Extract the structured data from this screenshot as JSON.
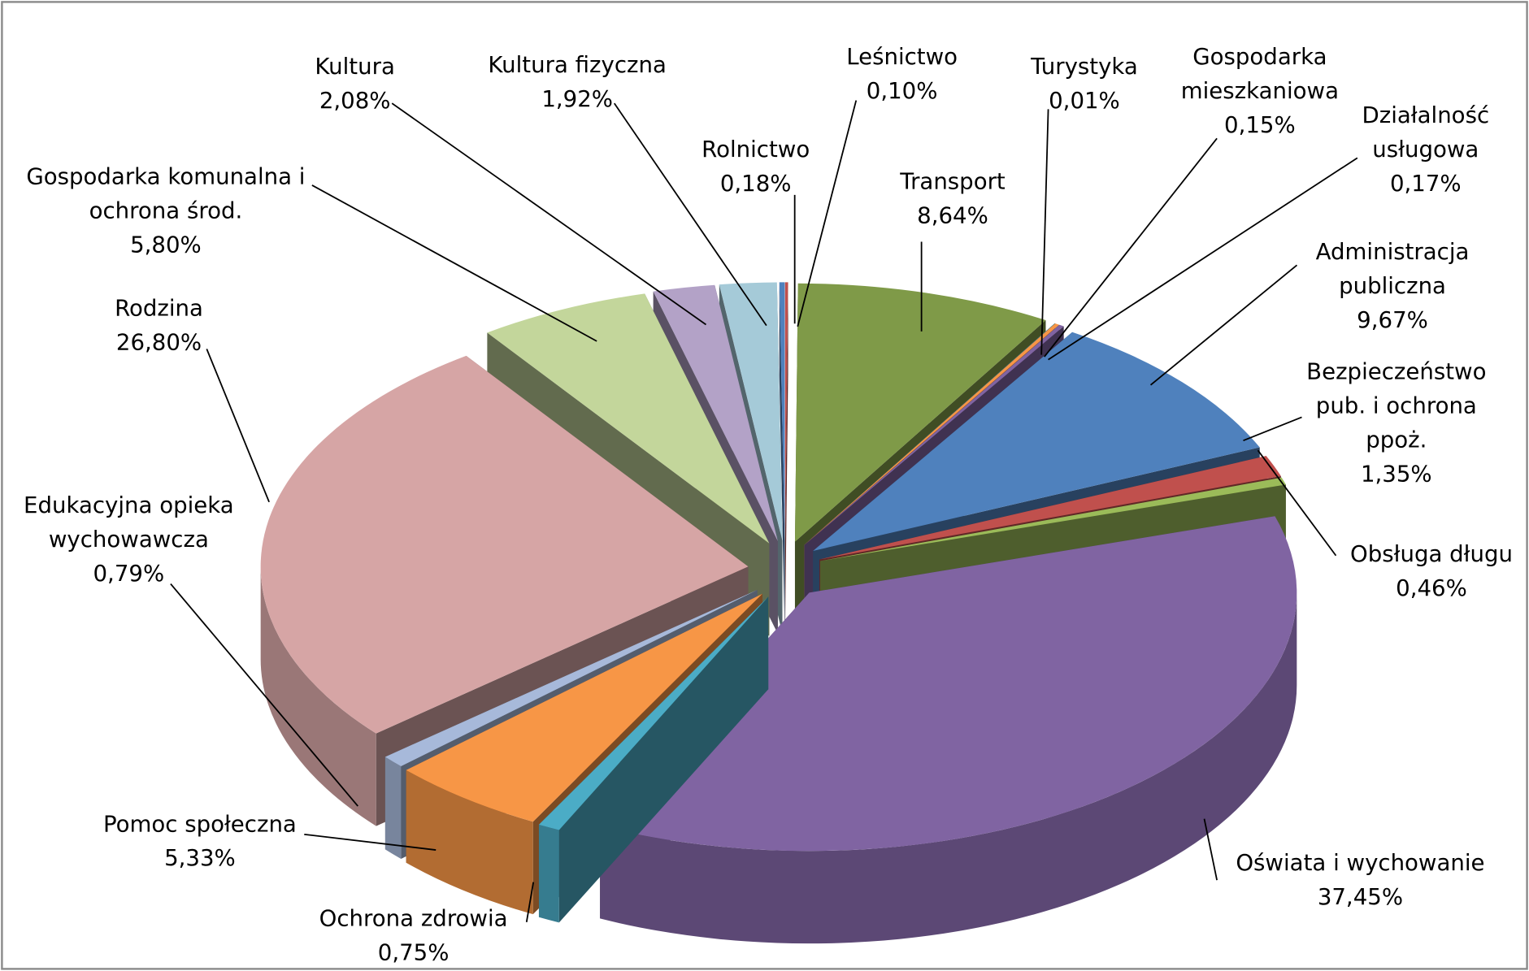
{
  "chart_data": {
    "type": "pie",
    "three_d": true,
    "exploded": true,
    "categories": [
      "Leśnictwo",
      "Transport",
      "Turystyka",
      "Gospodarka mieszkaniowa",
      "Działalność usługowa",
      "Administracja publiczna",
      "Bezpieczeństwo pub. i ochrona ppoż.",
      "Obsługa długu",
      "Oświata i wychowanie",
      "Ochrona zdrowia",
      "Pomoc społeczna",
      "Edukacyjna opieka wychowawcza",
      "Rodzina",
      "Gospodarka komunalna i ochrona środ.",
      "Kultura",
      "Kultura fizyczna",
      "Rolnictwo"
    ],
    "values": [
      0.1,
      8.64,
      0.01,
      0.15,
      0.17,
      9.67,
      1.35,
      0.46,
      37.45,
      0.75,
      5.33,
      0.79,
      26.8,
      5.8,
      2.08,
      1.92,
      0.18
    ],
    "value_labels": [
      "0,10%",
      "8,64%",
      "0,01%",
      "0,15%",
      "0,17%",
      "9,67%",
      "1,35%",
      "0,46%",
      "37,45%",
      "0,75%",
      "5,33%",
      "0,79%",
      "26,80%",
      "5,80%",
      "2,08%",
      "1,92%",
      "0,18%"
    ],
    "colors": [
      "#c0504d",
      "#7f9a48",
      "#4bacc6",
      "#f79646",
      "#8064a2",
      "#4f81bd",
      "#c0504d",
      "#9bbb59",
      "#8064a2",
      "#4bacc6",
      "#f79646",
      "#a7b9da",
      "#d6a5a5",
      "#c3d69b",
      "#b3a2c7",
      "#a5cad8",
      "#4f81bd"
    ]
  }
}
